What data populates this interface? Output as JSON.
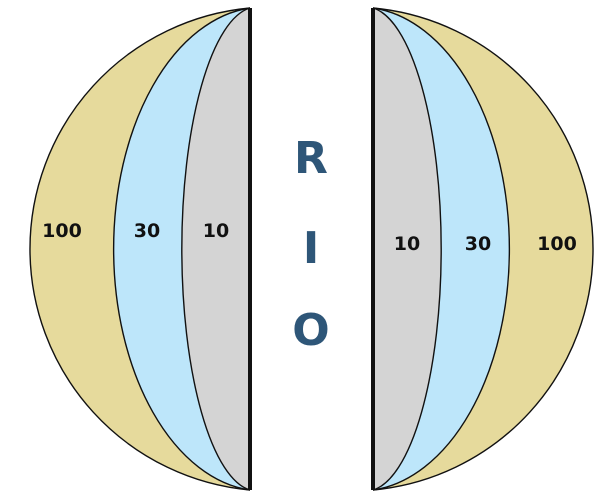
{
  "center_letters": [
    "R",
    "I",
    "O"
  ],
  "left_half": {
    "zones": [
      {
        "label": "100",
        "fill": "#e6da9c"
      },
      {
        "label": "30",
        "fill": "#bde6fa"
      },
      {
        "label": "10",
        "fill": "#d4d4d4"
      }
    ]
  },
  "right_half": {
    "zones": [
      {
        "label": "10",
        "fill": "#d4d4d4"
      },
      {
        "label": "30",
        "fill": "#bde6fa"
      },
      {
        "label": "100",
        "fill": "#e6da9c"
      }
    ]
  },
  "colors": {
    "letters": "#2e5678",
    "outline": "#111111"
  }
}
